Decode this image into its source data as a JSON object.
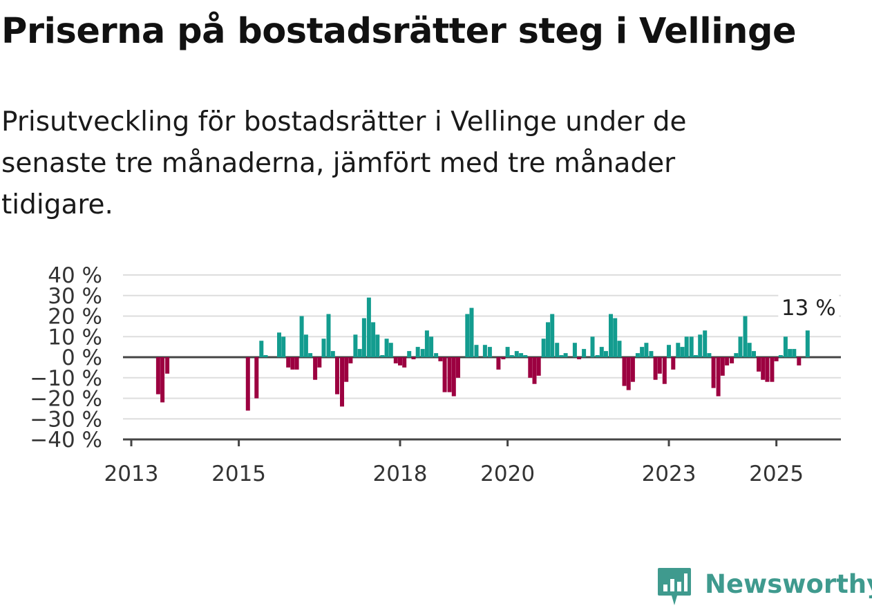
{
  "title": "Priserna på bostadsrätter steg i Vellinge",
  "subtitle": "Prisutveckling för bostadsrätter i Vellinge under de senaste tre månaderna, jämfört med tre månader tidigare.",
  "brand": {
    "name": "Newsworthy",
    "color": "#3f9a8e"
  },
  "chart_data": {
    "type": "bar",
    "title": "",
    "xlabel": "",
    "ylabel": "",
    "ylim": [
      -40,
      40
    ],
    "yticks": [
      40,
      30,
      20,
      10,
      0,
      -10,
      -20,
      -30,
      -40
    ],
    "ytick_labels": [
      "40 %",
      "30 %",
      "20 %",
      "10 %",
      "0 %",
      "−10 %",
      "−20 %",
      "−30 %",
      "−40 %"
    ],
    "xlim": [
      2013,
      2026.2
    ],
    "xticks": [
      2013,
      2015,
      2018,
      2020,
      2023,
      2025
    ],
    "xtick_labels": [
      "2013",
      "2015",
      "2018",
      "2020",
      "2023",
      "2025"
    ],
    "grid": true,
    "colors": {
      "positive": "#139c8f",
      "negative": "#9c0040"
    },
    "annotation": {
      "x": 2025.6,
      "value": 13,
      "label": "13 %"
    },
    "bars": [
      {
        "x": 2013.5,
        "value": -18
      },
      {
        "x": 2013.58,
        "value": -22
      },
      {
        "x": 2013.67,
        "value": -8
      },
      {
        "x": 2015.17,
        "value": -26
      },
      {
        "x": 2015.33,
        "value": -20
      },
      {
        "x": 2015.42,
        "value": 8
      },
      {
        "x": 2015.5,
        "value": 1
      },
      {
        "x": 2015.75,
        "value": 12
      },
      {
        "x": 2015.83,
        "value": 10
      },
      {
        "x": 2015.92,
        "value": -5
      },
      {
        "x": 2016.0,
        "value": -6
      },
      {
        "x": 2016.08,
        "value": -6
      },
      {
        "x": 2016.17,
        "value": 20
      },
      {
        "x": 2016.25,
        "value": 11
      },
      {
        "x": 2016.33,
        "value": 2
      },
      {
        "x": 2016.42,
        "value": -11
      },
      {
        "x": 2016.5,
        "value": -5
      },
      {
        "x": 2016.58,
        "value": 9
      },
      {
        "x": 2016.67,
        "value": 21
      },
      {
        "x": 2016.75,
        "value": 3
      },
      {
        "x": 2016.83,
        "value": -18
      },
      {
        "x": 2016.92,
        "value": -24
      },
      {
        "x": 2017.0,
        "value": -12
      },
      {
        "x": 2017.08,
        "value": -3
      },
      {
        "x": 2017.17,
        "value": 11
      },
      {
        "x": 2017.25,
        "value": 4
      },
      {
        "x": 2017.33,
        "value": 19
      },
      {
        "x": 2017.42,
        "value": 29
      },
      {
        "x": 2017.5,
        "value": 17
      },
      {
        "x": 2017.58,
        "value": 11
      },
      {
        "x": 2017.67,
        "value": 1
      },
      {
        "x": 2017.75,
        "value": 9
      },
      {
        "x": 2017.83,
        "value": 7
      },
      {
        "x": 2017.92,
        "value": -3
      },
      {
        "x": 2018.0,
        "value": -4
      },
      {
        "x": 2018.08,
        "value": -5
      },
      {
        "x": 2018.17,
        "value": 3
      },
      {
        "x": 2018.25,
        "value": -1
      },
      {
        "x": 2018.33,
        "value": 5
      },
      {
        "x": 2018.42,
        "value": 4
      },
      {
        "x": 2018.5,
        "value": 13
      },
      {
        "x": 2018.58,
        "value": 10
      },
      {
        "x": 2018.67,
        "value": 2
      },
      {
        "x": 2018.75,
        "value": -2
      },
      {
        "x": 2018.83,
        "value": -17
      },
      {
        "x": 2018.92,
        "value": -17
      },
      {
        "x": 2019.0,
        "value": -19
      },
      {
        "x": 2019.08,
        "value": -10
      },
      {
        "x": 2019.25,
        "value": 21
      },
      {
        "x": 2019.33,
        "value": 24
      },
      {
        "x": 2019.42,
        "value": 6
      },
      {
        "x": 2019.58,
        "value": 6
      },
      {
        "x": 2019.67,
        "value": 5
      },
      {
        "x": 2019.83,
        "value": -6
      },
      {
        "x": 2019.92,
        "value": -1
      },
      {
        "x": 2020.0,
        "value": 5
      },
      {
        "x": 2020.08,
        "value": 1
      },
      {
        "x": 2020.17,
        "value": 3
      },
      {
        "x": 2020.25,
        "value": 2
      },
      {
        "x": 2020.33,
        "value": 1
      },
      {
        "x": 2020.42,
        "value": -10
      },
      {
        "x": 2020.5,
        "value": -13
      },
      {
        "x": 2020.58,
        "value": -9
      },
      {
        "x": 2020.67,
        "value": 9
      },
      {
        "x": 2020.75,
        "value": 17
      },
      {
        "x": 2020.83,
        "value": 21
      },
      {
        "x": 2020.92,
        "value": 7
      },
      {
        "x": 2021.0,
        "value": 1
      },
      {
        "x": 2021.08,
        "value": 2
      },
      {
        "x": 2021.25,
        "value": 7
      },
      {
        "x": 2021.33,
        "value": -1
      },
      {
        "x": 2021.42,
        "value": 4
      },
      {
        "x": 2021.58,
        "value": 10
      },
      {
        "x": 2021.67,
        "value": 1
      },
      {
        "x": 2021.75,
        "value": 5
      },
      {
        "x": 2021.83,
        "value": 3
      },
      {
        "x": 2021.92,
        "value": 21
      },
      {
        "x": 2022.0,
        "value": 19
      },
      {
        "x": 2022.08,
        "value": 8
      },
      {
        "x": 2022.17,
        "value": -14
      },
      {
        "x": 2022.25,
        "value": -16
      },
      {
        "x": 2022.33,
        "value": -12
      },
      {
        "x": 2022.42,
        "value": 2
      },
      {
        "x": 2022.5,
        "value": 5
      },
      {
        "x": 2022.58,
        "value": 7
      },
      {
        "x": 2022.67,
        "value": 3
      },
      {
        "x": 2022.75,
        "value": -11
      },
      {
        "x": 2022.83,
        "value": -8
      },
      {
        "x": 2022.92,
        "value": -13
      },
      {
        "x": 2023.0,
        "value": 6
      },
      {
        "x": 2023.08,
        "value": -6
      },
      {
        "x": 2023.17,
        "value": 7
      },
      {
        "x": 2023.25,
        "value": 5
      },
      {
        "x": 2023.33,
        "value": 10
      },
      {
        "x": 2023.42,
        "value": 10
      },
      {
        "x": 2023.5,
        "value": 1
      },
      {
        "x": 2023.58,
        "value": 11
      },
      {
        "x": 2023.67,
        "value": 13
      },
      {
        "x": 2023.75,
        "value": 2
      },
      {
        "x": 2023.83,
        "value": -15
      },
      {
        "x": 2023.92,
        "value": -19
      },
      {
        "x": 2024.0,
        "value": -9
      },
      {
        "x": 2024.08,
        "value": -4
      },
      {
        "x": 2024.17,
        "value": -3
      },
      {
        "x": 2024.25,
        "value": 2
      },
      {
        "x": 2024.33,
        "value": 10
      },
      {
        "x": 2024.42,
        "value": 20
      },
      {
        "x": 2024.5,
        "value": 7
      },
      {
        "x": 2024.58,
        "value": 3
      },
      {
        "x": 2024.67,
        "value": -7
      },
      {
        "x": 2024.75,
        "value": -11
      },
      {
        "x": 2024.83,
        "value": -12
      },
      {
        "x": 2024.92,
        "value": -12
      },
      {
        "x": 2025.0,
        "value": -2
      },
      {
        "x": 2025.08,
        "value": 1
      },
      {
        "x": 2025.17,
        "value": 10
      },
      {
        "x": 2025.25,
        "value": 4
      },
      {
        "x": 2025.33,
        "value": 4
      },
      {
        "x": 2025.42,
        "value": -4
      },
      {
        "x": 2025.58,
        "value": 13
      }
    ]
  }
}
